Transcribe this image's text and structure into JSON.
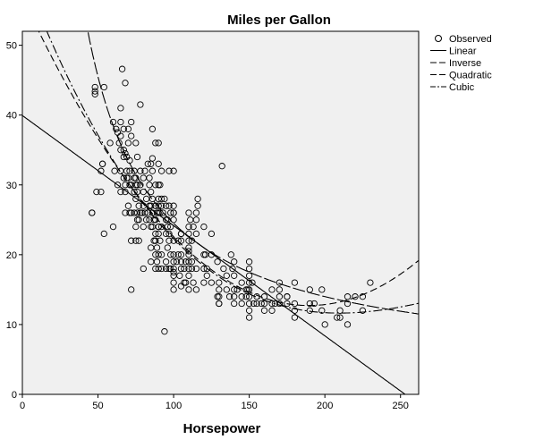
{
  "chart_data": {
    "type": "scatter",
    "title": "Miles per Gallon",
    "xlabel": "Horsepower",
    "ylabel": "",
    "xlim": [
      0,
      262
    ],
    "ylim": [
      0,
      52
    ],
    "xticks": [
      "0",
      "50",
      "100",
      "150",
      "200",
      "250"
    ],
    "yticks": [
      "0",
      "10",
      "20",
      "30",
      "40",
      "50"
    ],
    "grid": false,
    "legend_position": "right",
    "plot_background": "#f0f0f0",
    "legend": [
      "Observed",
      "Linear",
      "Inverse",
      "Quadratic",
      "Cubic"
    ],
    "observed": {
      "name": "Observed",
      "marker": "open-circle",
      "points": [
        [
          46,
          26
        ],
        [
          46,
          26
        ],
        [
          48,
          43
        ],
        [
          48,
          44
        ],
        [
          48,
          43.4
        ],
        [
          49,
          29
        ],
        [
          52,
          29
        ],
        [
          52,
          32
        ],
        [
          53,
          33
        ],
        [
          53,
          33
        ],
        [
          54,
          23
        ],
        [
          54,
          44
        ],
        [
          58,
          36
        ],
        [
          60,
          24
        ],
        [
          60,
          39
        ],
        [
          61,
          32
        ],
        [
          62,
          38
        ],
        [
          63,
          37.5
        ],
        [
          63,
          30
        ],
        [
          64,
          36
        ],
        [
          65,
          29
        ],
        [
          65,
          32
        ],
        [
          65,
          35
        ],
        [
          65,
          37
        ],
        [
          65,
          39
        ],
        [
          65,
          41
        ],
        [
          66,
          46.6
        ],
        [
          67,
          35
        ],
        [
          67,
          38
        ],
        [
          67,
          34
        ],
        [
          67,
          31
        ],
        [
          68,
          30
        ],
        [
          68,
          34.5
        ],
        [
          68,
          29
        ],
        [
          68,
          44.6
        ],
        [
          68,
          26
        ],
        [
          69,
          32
        ],
        [
          69,
          31
        ],
        [
          69,
          34
        ],
        [
          70,
          36
        ],
        [
          70,
          27
        ],
        [
          70,
          31
        ],
        [
          70,
          38
        ],
        [
          71,
          32
        ],
        [
          71,
          30
        ],
        [
          71,
          26
        ],
        [
          71,
          33.5
        ],
        [
          72,
          15
        ],
        [
          72,
          22
        ],
        [
          72,
          30
        ],
        [
          72,
          37
        ],
        [
          72,
          39
        ],
        [
          72,
          26
        ],
        [
          74,
          31
        ],
        [
          74,
          32
        ],
        [
          74,
          26
        ],
        [
          74,
          29
        ],
        [
          75,
          28
        ],
        [
          75,
          22
        ],
        [
          75,
          24
        ],
        [
          75,
          31
        ],
        [
          75,
          36
        ],
        [
          75,
          30
        ],
        [
          76,
          25
        ],
        [
          76,
          30
        ],
        [
          76,
          26
        ],
        [
          76,
          29
        ],
        [
          76,
          34
        ],
        [
          77,
          25
        ],
        [
          77,
          22
        ],
        [
          77,
          27
        ],
        [
          78,
          30
        ],
        [
          78,
          41.5
        ],
        [
          78,
          32
        ],
        [
          78,
          26
        ],
        [
          79,
          26
        ],
        [
          80,
          27
        ],
        [
          80,
          31
        ],
        [
          80,
          29
        ],
        [
          80,
          18
        ],
        [
          80,
          24
        ],
        [
          81,
          32
        ],
        [
          81,
          26
        ],
        [
          82,
          28
        ],
        [
          82,
          25
        ],
        [
          83,
          33
        ],
        [
          83,
          26
        ],
        [
          84,
          31
        ],
        [
          84,
          30
        ],
        [
          84,
          27
        ],
        [
          84,
          25
        ],
        [
          85,
          29
        ],
        [
          85,
          27
        ],
        [
          85,
          33
        ],
        [
          85,
          24
        ],
        [
          85,
          21
        ],
        [
          85,
          19
        ],
        [
          86,
          24
        ],
        [
          86,
          32
        ],
        [
          86,
          28
        ],
        [
          86,
          26
        ],
        [
          86,
          38
        ],
        [
          86,
          33.8
        ],
        [
          87,
          22
        ],
        [
          87,
          25
        ],
        [
          88,
          18
        ],
        [
          88,
          20
        ],
        [
          88,
          25
        ],
        [
          88,
          27
        ],
        [
          88,
          30
        ],
        [
          88,
          22
        ],
        [
          88,
          23
        ],
        [
          88,
          27
        ],
        [
          88,
          36
        ],
        [
          89,
          26
        ],
        [
          89,
          21
        ],
        [
          89,
          19
        ],
        [
          90,
          24
        ],
        [
          90,
          27
        ],
        [
          90,
          23
        ],
        [
          90,
          24
        ],
        [
          90,
          26
        ],
        [
          90,
          28
        ],
        [
          90,
          20
        ],
        [
          90,
          18
        ],
        [
          90,
          30
        ],
        [
          90,
          33
        ],
        [
          90,
          36
        ],
        [
          91,
          22
        ],
        [
          91,
          26
        ],
        [
          91,
          30
        ],
        [
          92,
          18
        ],
        [
          92,
          24
        ],
        [
          92,
          27
        ],
        [
          92,
          28
        ],
        [
          92,
          32
        ],
        [
          92,
          20
        ],
        [
          93,
          26
        ],
        [
          94,
          28
        ],
        [
          94,
          9
        ],
        [
          95,
          25
        ],
        [
          95,
          23
        ],
        [
          95,
          19
        ],
        [
          95,
          18
        ],
        [
          95,
          27
        ],
        [
          96,
          24
        ],
        [
          96,
          21
        ],
        [
          96,
          25
        ],
        [
          97,
          22
        ],
        [
          97,
          18
        ],
        [
          97,
          27
        ],
        [
          97,
          23
        ],
        [
          97,
          32
        ],
        [
          98,
          20
        ],
        [
          98,
          24
        ],
        [
          98,
          18
        ],
        [
          98,
          26
        ],
        [
          100,
          17
        ],
        [
          100,
          19
        ],
        [
          100,
          20
        ],
        [
          100,
          22
        ],
        [
          100,
          25
        ],
        [
          100,
          26
        ],
        [
          100,
          18
        ],
        [
          100,
          17.5
        ],
        [
          100,
          15
        ],
        [
          100,
          16
        ],
        [
          100,
          26
        ],
        [
          100,
          32
        ],
        [
          100,
          27
        ],
        [
          102,
          19
        ],
        [
          103,
          20
        ],
        [
          103,
          22
        ],
        [
          104,
          17
        ],
        [
          105,
          20
        ],
        [
          105,
          22
        ],
        [
          105,
          23
        ],
        [
          105,
          19
        ],
        [
          105,
          18
        ],
        [
          105,
          15.5
        ],
        [
          105,
          23
        ],
        [
          107,
          18
        ],
        [
          107,
          16
        ],
        [
          108,
          16
        ],
        [
          108,
          19
        ],
        [
          110,
          15
        ],
        [
          110,
          18
        ],
        [
          110,
          20
        ],
        [
          110,
          22
        ],
        [
          110,
          24
        ],
        [
          110,
          26
        ],
        [
          110,
          19
        ],
        [
          110,
          20.5
        ],
        [
          110,
          17
        ],
        [
          110,
          21
        ],
        [
          110,
          23
        ],
        [
          111,
          25
        ],
        [
          112,
          22
        ],
        [
          112,
          18
        ],
        [
          112,
          19
        ],
        [
          113,
          16
        ],
        [
          113,
          24
        ],
        [
          115,
          26
        ],
        [
          115,
          25
        ],
        [
          115,
          18
        ],
        [
          115,
          23
        ],
        [
          115,
          15
        ],
        [
          116,
          28
        ],
        [
          116,
          27
        ],
        [
          120,
          24
        ],
        [
          120,
          18
        ],
        [
          120,
          20
        ],
        [
          120,
          16
        ],
        [
          121,
          20
        ],
        [
          122,
          17
        ],
        [
          122,
          18
        ],
        [
          125,
          20
        ],
        [
          125,
          16
        ],
        [
          125,
          23
        ],
        [
          129,
          14
        ],
        [
          129,
          19
        ],
        [
          130,
          13
        ],
        [
          130,
          13
        ],
        [
          130,
          15
        ],
        [
          130,
          14
        ],
        [
          130,
          16
        ],
        [
          132,
          32.7
        ],
        [
          133,
          18
        ],
        [
          135,
          15
        ],
        [
          135,
          17
        ],
        [
          137,
          14
        ],
        [
          138,
          20
        ],
        [
          139,
          18
        ],
        [
          140,
          13
        ],
        [
          140,
          14
        ],
        [
          140,
          15
        ],
        [
          140,
          17
        ],
        [
          140,
          19
        ],
        [
          142,
          15
        ],
        [
          145,
          13
        ],
        [
          145,
          14
        ],
        [
          145,
          16
        ],
        [
          148,
          15
        ],
        [
          148,
          14
        ],
        [
          149,
          15
        ],
        [
          150,
          13
        ],
        [
          150,
          14
        ],
        [
          150,
          15
        ],
        [
          150,
          16
        ],
        [
          150,
          17
        ],
        [
          150,
          19
        ],
        [
          150,
          11
        ],
        [
          150,
          12
        ],
        [
          150,
          18
        ],
        [
          152,
          16
        ],
        [
          153,
          13
        ],
        [
          155,
          14
        ],
        [
          155,
          13
        ],
        [
          158,
          13
        ],
        [
          160,
          13
        ],
        [
          160,
          12
        ],
        [
          160,
          14
        ],
        [
          165,
          13
        ],
        [
          165,
          15
        ],
        [
          165,
          12
        ],
        [
          167,
          13
        ],
        [
          170,
          14
        ],
        [
          170,
          16
        ],
        [
          170,
          15
        ],
        [
          170,
          13
        ],
        [
          175,
          14
        ],
        [
          175,
          13
        ],
        [
          175,
          14
        ],
        [
          180,
          12
        ],
        [
          180,
          13
        ],
        [
          180,
          16
        ],
        [
          180,
          11
        ],
        [
          190,
          13
        ],
        [
          190,
          12
        ],
        [
          190,
          15
        ],
        [
          193,
          13
        ],
        [
          198,
          15
        ],
        [
          198,
          12
        ],
        [
          200,
          10
        ],
        [
          208,
          11
        ],
        [
          210,
          11
        ],
        [
          210,
          12
        ],
        [
          215,
          13
        ],
        [
          215,
          14
        ],
        [
          215,
          10
        ],
        [
          220,
          14
        ],
        [
          225,
          12
        ],
        [
          225,
          14
        ],
        [
          230,
          16
        ]
      ]
    },
    "curves": [
      {
        "name": "Linear",
        "dash": "solid",
        "coefficients": {
          "b0": 39.936,
          "b1": -0.1578
        }
      },
      {
        "name": "Inverse",
        "dash": "long-dash",
        "coefficients": {
          "b0": 3.5,
          "b1": 2100
        }
      },
      {
        "name": "Quadratic",
        "dash": "dash",
        "coefficients": {
          "b0": 56.9,
          "b1": -0.4662,
          "b2": 0.00123
        }
      },
      {
        "name": "Cubic",
        "dash": "dash-dot",
        "coefficients": {
          "b0": 60.68,
          "b1": -0.5689,
          "b2": 0.00208,
          "b3": -2.3e-06
        }
      }
    ]
  }
}
